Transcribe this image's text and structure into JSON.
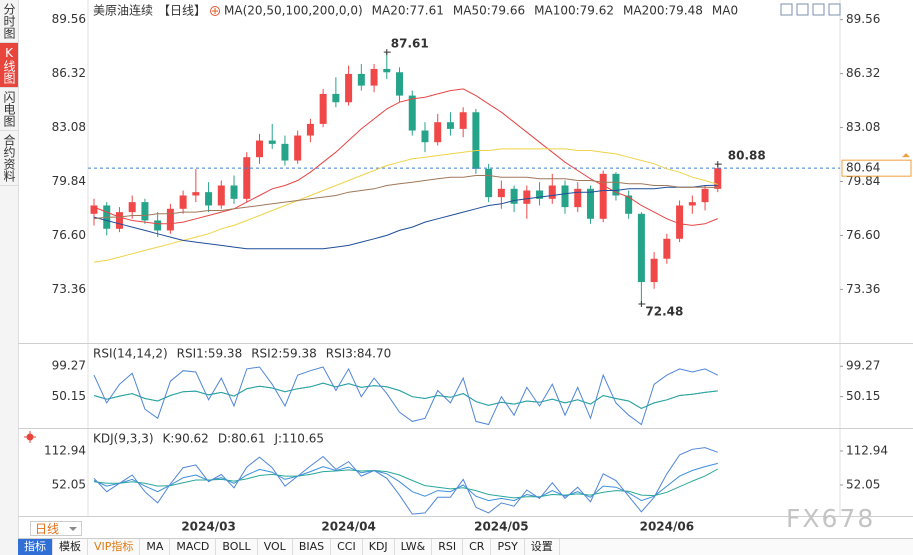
{
  "sidebar": {
    "tabs": [
      "分时图",
      "K线图",
      "闪电图",
      "合约资料"
    ]
  },
  "chart_data": [
    {
      "type": "candlestick",
      "title": "美原油连续",
      "period": "【日线】",
      "indicator": "MA(20,50,100,200,0,0)",
      "legend_extra": "MA0",
      "categories": [
        null,
        null,
        null,
        null,
        null,
        null,
        null,
        null,
        null,
        "2024/03",
        null,
        null,
        null,
        null,
        null,
        null,
        null,
        null,
        null,
        null,
        "2024/04",
        null,
        null,
        null,
        null,
        null,
        null,
        null,
        null,
        null,
        null,
        null,
        "2024/05",
        null,
        null,
        null,
        null,
        null,
        null,
        null,
        null,
        null,
        null,
        null,
        null,
        "2024/06",
        null,
        null,
        null,
        null
      ],
      "open": [
        77.9,
        78.4,
        77.0,
        78.0,
        78.6,
        77.5,
        76.9,
        78.2,
        79.0,
        79.2,
        78.4,
        79.6,
        78.8,
        81.3,
        82.3,
        82.1,
        81.1,
        82.6,
        83.3,
        85.1,
        84.6,
        86.3,
        85.6,
        86.6,
        86.4,
        85.0,
        82.9,
        82.2,
        83.4,
        83.0,
        84.0,
        80.6,
        78.9,
        79.4,
        78.5,
        79.3,
        78.8,
        79.6,
        78.3,
        79.4,
        77.6,
        80.3,
        79.0,
        77.9,
        73.8,
        75.2,
        76.4,
        78.4,
        78.6,
        79.4
      ],
      "high": [
        78.8,
        78.6,
        78.3,
        79.0,
        78.8,
        78.0,
        78.5,
        79.3,
        80.6,
        79.8,
        79.9,
        80.2,
        81.6,
        82.7,
        83.3,
        82.6,
        82.9,
        83.6,
        85.4,
        86.1,
        86.8,
        86.9,
        86.9,
        87.61,
        86.7,
        85.3,
        83.4,
        83.9,
        84.0,
        84.3,
        84.2,
        80.9,
        79.9,
        79.6,
        79.6,
        79.8,
        80.3,
        79.9,
        79.8,
        79.6,
        80.5,
        80.4,
        79.3,
        78.0,
        75.6,
        76.7,
        78.7,
        79.0,
        79.6,
        80.88
      ],
      "low": [
        77.2,
        76.6,
        76.8,
        77.6,
        77.3,
        76.5,
        76.7,
        77.9,
        78.6,
        78.0,
        78.2,
        78.5,
        78.6,
        80.9,
        81.8,
        80.8,
        80.9,
        82.2,
        83.1,
        84.3,
        84.4,
        85.3,
        85.2,
        86.0,
        84.6,
        82.6,
        81.6,
        82.0,
        82.6,
        82.5,
        80.3,
        78.6,
        78.2,
        78.0,
        77.6,
        78.4,
        78.5,
        77.9,
        78.0,
        77.3,
        77.4,
        78.7,
        77.6,
        72.48,
        73.4,
        74.9,
        76.2,
        77.9,
        78.1,
        79.2
      ],
      "close": [
        78.4,
        77.0,
        78.0,
        78.6,
        77.5,
        76.9,
        78.2,
        79.0,
        79.2,
        78.4,
        79.6,
        78.8,
        81.3,
        82.3,
        82.1,
        81.1,
        82.6,
        83.3,
        85.1,
        84.6,
        86.3,
        85.6,
        86.6,
        86.4,
        85.0,
        82.9,
        82.2,
        83.4,
        83.0,
        84.0,
        80.6,
        78.9,
        79.4,
        78.5,
        79.3,
        78.8,
        79.6,
        78.3,
        79.4,
        77.6,
        80.3,
        79.0,
        77.9,
        73.8,
        75.2,
        76.4,
        78.4,
        78.6,
        79.4,
        80.64
      ],
      "up_color": "#f04848",
      "down_color": "#26a489",
      "series": [
        {
          "name": "MA20:77.61",
          "color": "#e84545",
          "values": [
            78.3,
            78.0,
            77.7,
            77.5,
            77.4,
            77.3,
            77.3,
            77.4,
            77.6,
            77.8,
            78.0,
            78.2,
            78.6,
            79.0,
            79.4,
            79.6,
            79.9,
            80.4,
            81.0,
            81.6,
            82.3,
            83.0,
            83.6,
            84.2,
            84.6,
            84.8,
            84.9,
            85.1,
            85.3,
            85.4,
            85.0,
            84.5,
            84.0,
            83.4,
            82.8,
            82.2,
            81.6,
            81.0,
            80.5,
            80.0,
            79.6,
            79.2,
            78.9,
            78.4,
            78.0,
            77.6,
            77.3,
            77.2,
            77.3,
            77.61
          ]
        },
        {
          "name": "MA50:79.66",
          "color": "#eed34a",
          "values": [
            75.0,
            75.1,
            75.3,
            75.5,
            75.7,
            75.9,
            76.1,
            76.3,
            76.5,
            76.7,
            77.0,
            77.2,
            77.5,
            77.8,
            78.1,
            78.4,
            78.7,
            79.0,
            79.3,
            79.6,
            79.9,
            80.2,
            80.5,
            80.8,
            81.0,
            81.2,
            81.3,
            81.4,
            81.5,
            81.6,
            81.7,
            81.7,
            81.8,
            81.8,
            81.8,
            81.8,
            81.8,
            81.8,
            81.7,
            81.7,
            81.6,
            81.5,
            81.3,
            81.1,
            80.9,
            80.6,
            80.4,
            80.1,
            79.9,
            79.66
          ]
        },
        {
          "name": "MA100:79.62",
          "color": "#1f4e9a",
          "values": [
            77.7,
            77.5,
            77.3,
            77.1,
            76.9,
            76.7,
            76.5,
            76.3,
            76.2,
            76.1,
            76.0,
            75.9,
            75.8,
            75.8,
            75.8,
            75.8,
            75.8,
            75.8,
            75.8,
            75.9,
            76.0,
            76.2,
            76.4,
            76.6,
            76.9,
            77.1,
            77.4,
            77.6,
            77.8,
            78.0,
            78.2,
            78.4,
            78.5,
            78.7,
            78.8,
            78.9,
            79.0,
            79.1,
            79.2,
            79.2,
            79.3,
            79.3,
            79.4,
            79.4,
            79.4,
            79.5,
            79.5,
            79.5,
            79.6,
            79.62
          ]
        },
        {
          "name": "MA200:79.48",
          "color": "#a0785a",
          "values": [
            77.6,
            77.7,
            77.7,
            77.8,
            77.8,
            77.9,
            77.9,
            78.0,
            78.0,
            78.1,
            78.1,
            78.2,
            78.3,
            78.4,
            78.5,
            78.6,
            78.7,
            78.8,
            78.9,
            79.0,
            79.2,
            79.3,
            79.4,
            79.6,
            79.7,
            79.8,
            79.9,
            80.0,
            80.1,
            80.1,
            80.2,
            80.2,
            80.1,
            80.1,
            80.1,
            80.0,
            80.0,
            80.0,
            79.9,
            79.9,
            79.8,
            79.8,
            79.7,
            79.7,
            79.6,
            79.6,
            79.5,
            79.5,
            79.5,
            79.48
          ]
        }
      ],
      "ylim": [
        70.2,
        90.2
      ],
      "yticks": [
        89.56,
        86.32,
        83.08,
        79.84,
        {
          "value": 76.6,
          "label": "76.60"
        },
        73.36
      ]
    },
    {
      "type": "line",
      "title": "RSI(14,14,2)",
      "series": [
        {
          "name": "RSI1:59.38",
          "color": "#3d8fd9",
          "values": [
            52,
            46,
            51,
            55,
            47,
            43,
            52,
            58,
            59,
            53,
            57,
            51,
            63,
            67,
            64,
            58,
            63,
            66,
            72,
            66,
            71,
            65,
            68,
            66,
            60,
            50,
            47,
            52,
            49,
            55,
            42,
            36,
            41,
            38,
            43,
            41,
            46,
            40,
            45,
            38,
            52,
            47,
            43,
            31,
            40,
            45,
            52,
            54,
            57,
            59.38
          ]
        },
        {
          "name": "RSI2:59.38",
          "color": "#2aa79b",
          "values": [
            52,
            46,
            51,
            55,
            47,
            43,
            52,
            58,
            59,
            53,
            57,
            51,
            63,
            67,
            64,
            58,
            63,
            66,
            72,
            66,
            71,
            65,
            68,
            66,
            60,
            50,
            47,
            52,
            49,
            55,
            42,
            36,
            41,
            38,
            43,
            41,
            46,
            40,
            45,
            38,
            52,
            47,
            43,
            31,
            40,
            45,
            52,
            54,
            57,
            59.38
          ]
        },
        {
          "name": "RSI3:84.70",
          "color": "#4f86d8",
          "values": [
            85,
            40,
            70,
            88,
            30,
            15,
            75,
            92,
            90,
            45,
            80,
            35,
            95,
            98,
            70,
            35,
            85,
            92,
            98,
            60,
            95,
            50,
            80,
            55,
            25,
            10,
            15,
            60,
            40,
            80,
            10,
            5,
            50,
            20,
            65,
            35,
            70,
            20,
            65,
            15,
            85,
            40,
            20,
            5,
            70,
            85,
            95,
            90,
            95,
            84.7
          ]
        }
      ],
      "ylim": [
        2.6,
        133.6
      ],
      "yticks": [
        99.27,
        50.15
      ]
    },
    {
      "type": "line",
      "title": "KDJ(9,3,3)",
      "series": [
        {
          "name": "K:90.62",
          "color": "#3d8fd9",
          "values": [
            60,
            50,
            55,
            62,
            50,
            40,
            52,
            65,
            70,
            60,
            65,
            55,
            70,
            80,
            75,
            62,
            68,
            76,
            85,
            78,
            84,
            74,
            78,
            72,
            58,
            40,
            32,
            42,
            40,
            52,
            32,
            24,
            28,
            24,
            35,
            30,
            42,
            32,
            40,
            30,
            50,
            48,
            38,
            24,
            32,
            50,
            68,
            78,
            85,
            90.62
          ]
        },
        {
          "name": "D:80.61",
          "color": "#2aa79b",
          "values": [
            58,
            55,
            55,
            58,
            55,
            50,
            51,
            56,
            61,
            61,
            62,
            59,
            63,
            69,
            71,
            68,
            68,
            71,
            76,
            77,
            79,
            77,
            78,
            76,
            70,
            60,
            51,
            48,
            45,
            47,
            42,
            35,
            32,
            29,
            31,
            31,
            35,
            34,
            36,
            34,
            39,
            42,
            41,
            34,
            33,
            39,
            49,
            59,
            68,
            80.61
          ]
        },
        {
          "name": "J:110.65",
          "color": "#4f86d8",
          "values": [
            64,
            40,
            55,
            70,
            40,
            20,
            54,
            83,
            88,
            58,
            71,
            47,
            84,
            102,
            83,
            50,
            68,
            86,
            103,
            80,
            94,
            68,
            78,
            64,
            34,
            0,
            2,
            30,
            30,
            62,
            12,
            2,
            20,
            14,
            43,
            28,
            56,
            28,
            48,
            22,
            72,
            60,
            32,
            4,
            30,
            72,
            106,
            116,
            119,
            110.65
          ]
        }
      ],
      "ylim": [
        -1.7,
        150.5
      ],
      "yticks": [
        112.94,
        52.05
      ]
    }
  ],
  "toolbar": {
    "period": "日线",
    "tabs": [
      "指标",
      "模板",
      "VIP指标",
      "MA",
      "MACD",
      "BOLL",
      "VOL",
      "BIAS",
      "CCI",
      "KDJ",
      "LW&",
      "RSI",
      "CR",
      "PSY",
      "设置"
    ]
  },
  "watermark": "FX678"
}
